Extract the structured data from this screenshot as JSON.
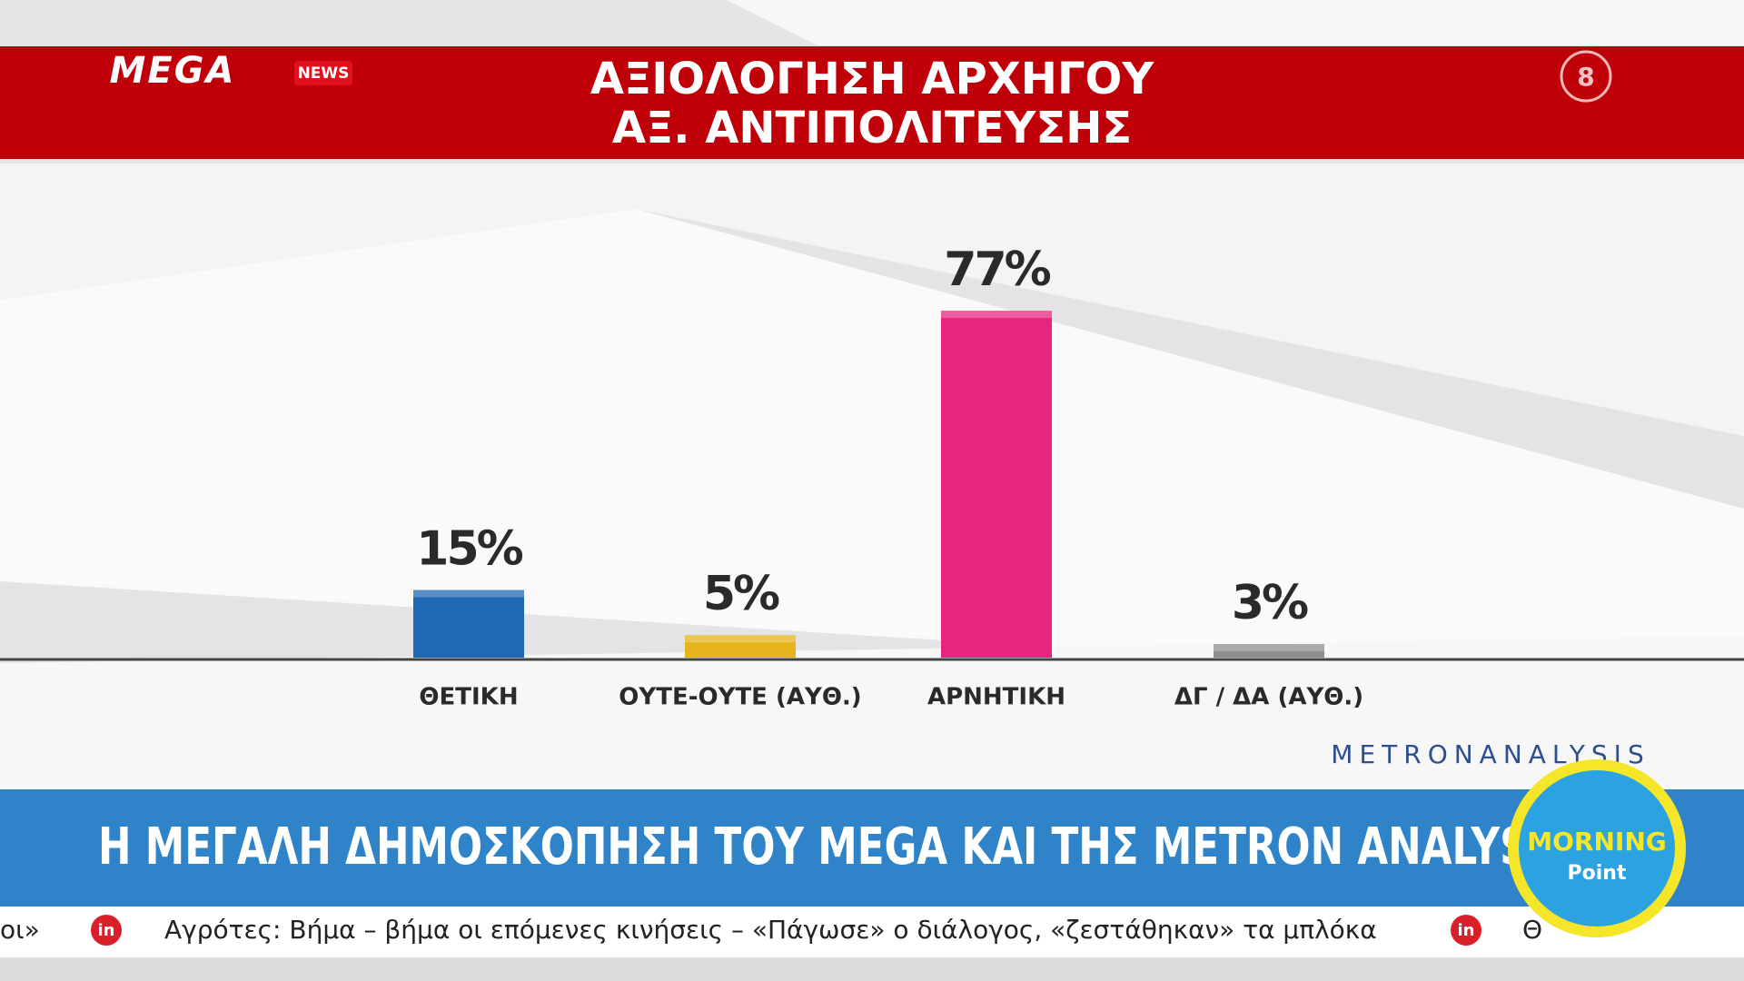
{
  "header": {
    "logo": "MEGA",
    "logo_badge": "NEWS",
    "title_lines": [
      "ΑΞΙΟΛΟΓΗΣΗ ΑΡΧΗΓΟΥ",
      "ΑΞ. ΑΝΤΙΠΟΛΙΤΕΥΣΗΣ"
    ],
    "page_number": "8"
  },
  "chart_data": {
    "type": "bar",
    "categories": [
      "ΘΕΤΙΚΗ",
      "ΟΥΤΕ-ΟΥΤΕ (ΑΥΘ.)",
      "ΑΡΝΗΤΙΚΗ",
      "ΔΓ / ΔΑ (ΑΥΘ.)"
    ],
    "values": [
      15,
      5,
      77,
      3
    ],
    "value_labels": [
      "15%",
      "5%",
      "77%",
      "3%"
    ],
    "colors": [
      "#1f68b4",
      "#e6b41c",
      "#e8247f",
      "#8e8e8e"
    ]
  },
  "source": "METRONANALYSIS",
  "banner": "Η ΜΕΓΑΛΗ ΔΗΜΟΣΚΟΠΗΣΗ ΤΟΥ MEGA ΚΑΙ ΤΗΣ METRON ANALYSIS",
  "show_badge": {
    "line1": "MORNING",
    "line2": "Point"
  },
  "ticker": {
    "icon": "in",
    "items": [
      "οι»",
      "Αγρότες: Βήμα – βήμα οι επόμενες κινήσεις – «Πάγωσε» ο διάλογος, «ζεστάθηκαν» τα μπλόκα",
      "Θ"
    ]
  }
}
